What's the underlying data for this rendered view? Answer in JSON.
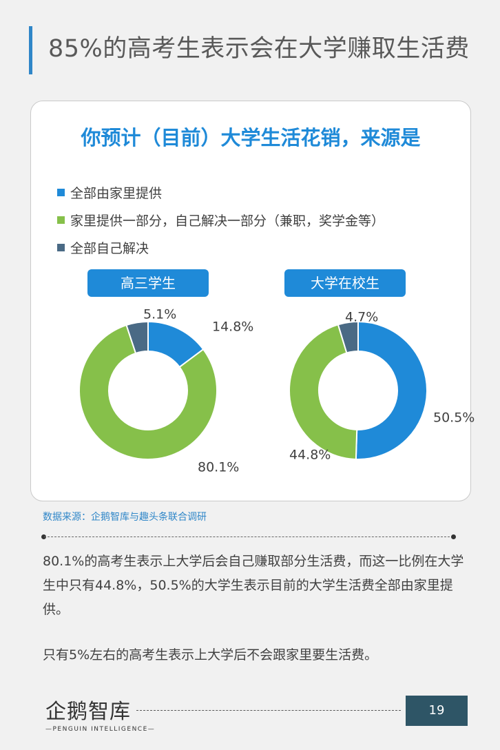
{
  "page": {
    "title": "85%的高考生表示会在大学赚取生活费",
    "page_number": "19"
  },
  "card": {
    "title": "你预计（目前）大学生活花销，来源是"
  },
  "legend": [
    {
      "label": "全部由家里提供",
      "color": "#1f8ad8"
    },
    {
      "label": "家里提供一部分，自己解决一部分（兼职，奖学金等）",
      "color": "#86c04a"
    },
    {
      "label": "全部自己解决",
      "color": "#4a6a85"
    }
  ],
  "chart_data": [
    {
      "type": "pie",
      "variant": "donut",
      "title": "高三学生",
      "labels": [
        "全部由家里提供",
        "家里提供一部分，自己解决一部分（兼职，奖学金等）",
        "全部自己解决"
      ],
      "values": [
        14.8,
        80.1,
        5.1
      ],
      "value_labels": [
        "14.8%",
        "80.1%",
        "5.1%"
      ],
      "colors": [
        "#1f8ad8",
        "#86c04a",
        "#4a6a85"
      ]
    },
    {
      "type": "pie",
      "variant": "donut",
      "title": "大学在校生",
      "labels": [
        "全部由家里提供",
        "家里提供一部分，自己解决一部分（兼职，奖学金等）",
        "全部自己解决"
      ],
      "values": [
        50.5,
        44.8,
        4.7
      ],
      "value_labels": [
        "50.5%",
        "44.8%",
        "4.7%"
      ],
      "colors": [
        "#1f8ad8",
        "#86c04a",
        "#4a6a85"
      ]
    }
  ],
  "source": "数据来源：企鹅智库与趣头条联合调研",
  "body": {
    "paragraph1": "80.1%的高考生表示上大学后会自己赚取部分生活费，而这一比例在大学生中只有44.8%，50.5%的大学生表示目前的大学生活费全部由家里提供。",
    "paragraph2": "只有5%左右的高考生表示上大学后不会跟家里要生活费。"
  },
  "logo": {
    "name_cn": "企鹅智库",
    "name_en": "—PENGUIN INTELLIGENCE—"
  }
}
